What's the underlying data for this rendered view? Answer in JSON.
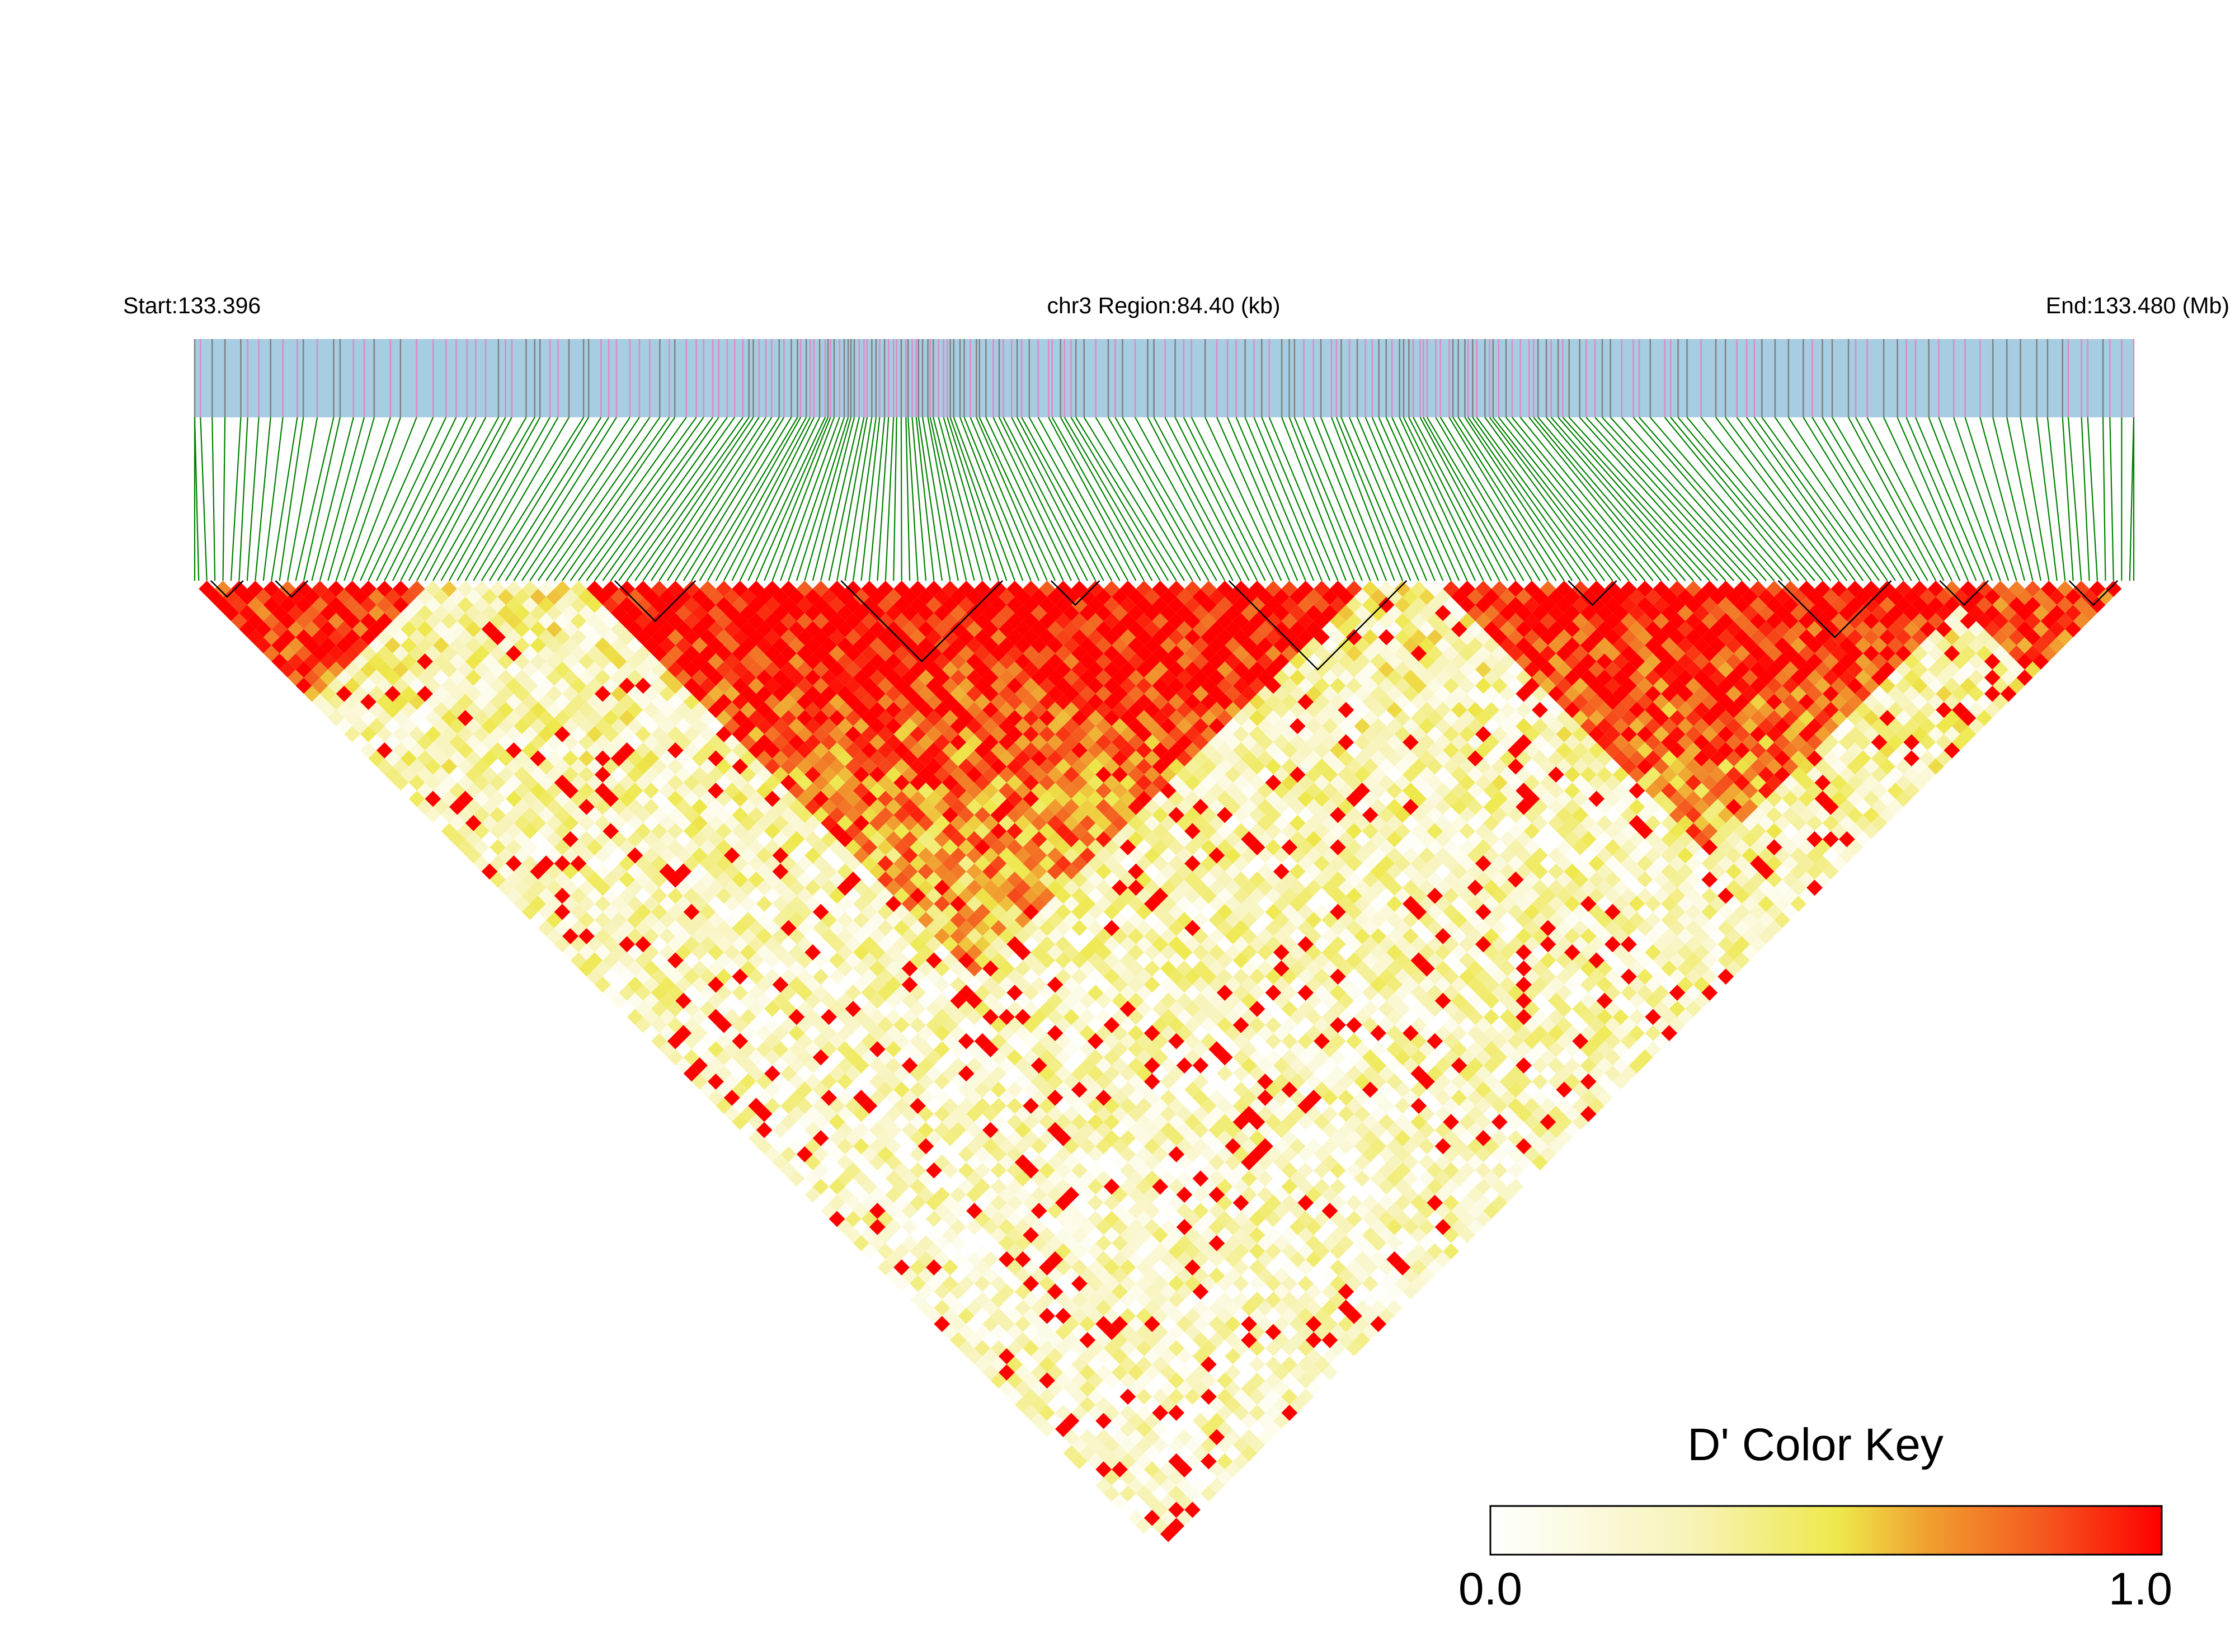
{
  "chart_data": {
    "type": "heatmap",
    "subtype": "linkage-disequilibrium-triangle",
    "header": {
      "start_label": "Start:133.396",
      "region_label": "chr3 Region:84.40 (kb)",
      "end_label": "End:133.480 (Mb)"
    },
    "region": {
      "chromosome": "chr3",
      "start_mb": 133.396,
      "end_mb": 133.48,
      "length_kb": 84.4
    },
    "snp_count_estimate": 240,
    "color_key": {
      "title": "D' Color Key",
      "min_label": "0.0",
      "max_label": "1.0",
      "range": [
        0,
        1
      ],
      "stops": [
        "#ffffff",
        "#f7f3b8",
        "#eee84a",
        "#f0a030",
        "#f45a1f",
        "#ff0000"
      ]
    },
    "colors": {
      "track_fill": "#a6cde1",
      "snp_mark_pink": "#e088c6",
      "snp_mark_gray": "#808080",
      "connector_green": "#008000",
      "block_outline": "#000000"
    },
    "notes_visible_structure": {
      "high_ld_regions": [
        "left end",
        "center-left large block",
        "right-center block"
      ],
      "overall_pattern": "mostly red near diagonal, yellow/white toward apex"
    }
  }
}
